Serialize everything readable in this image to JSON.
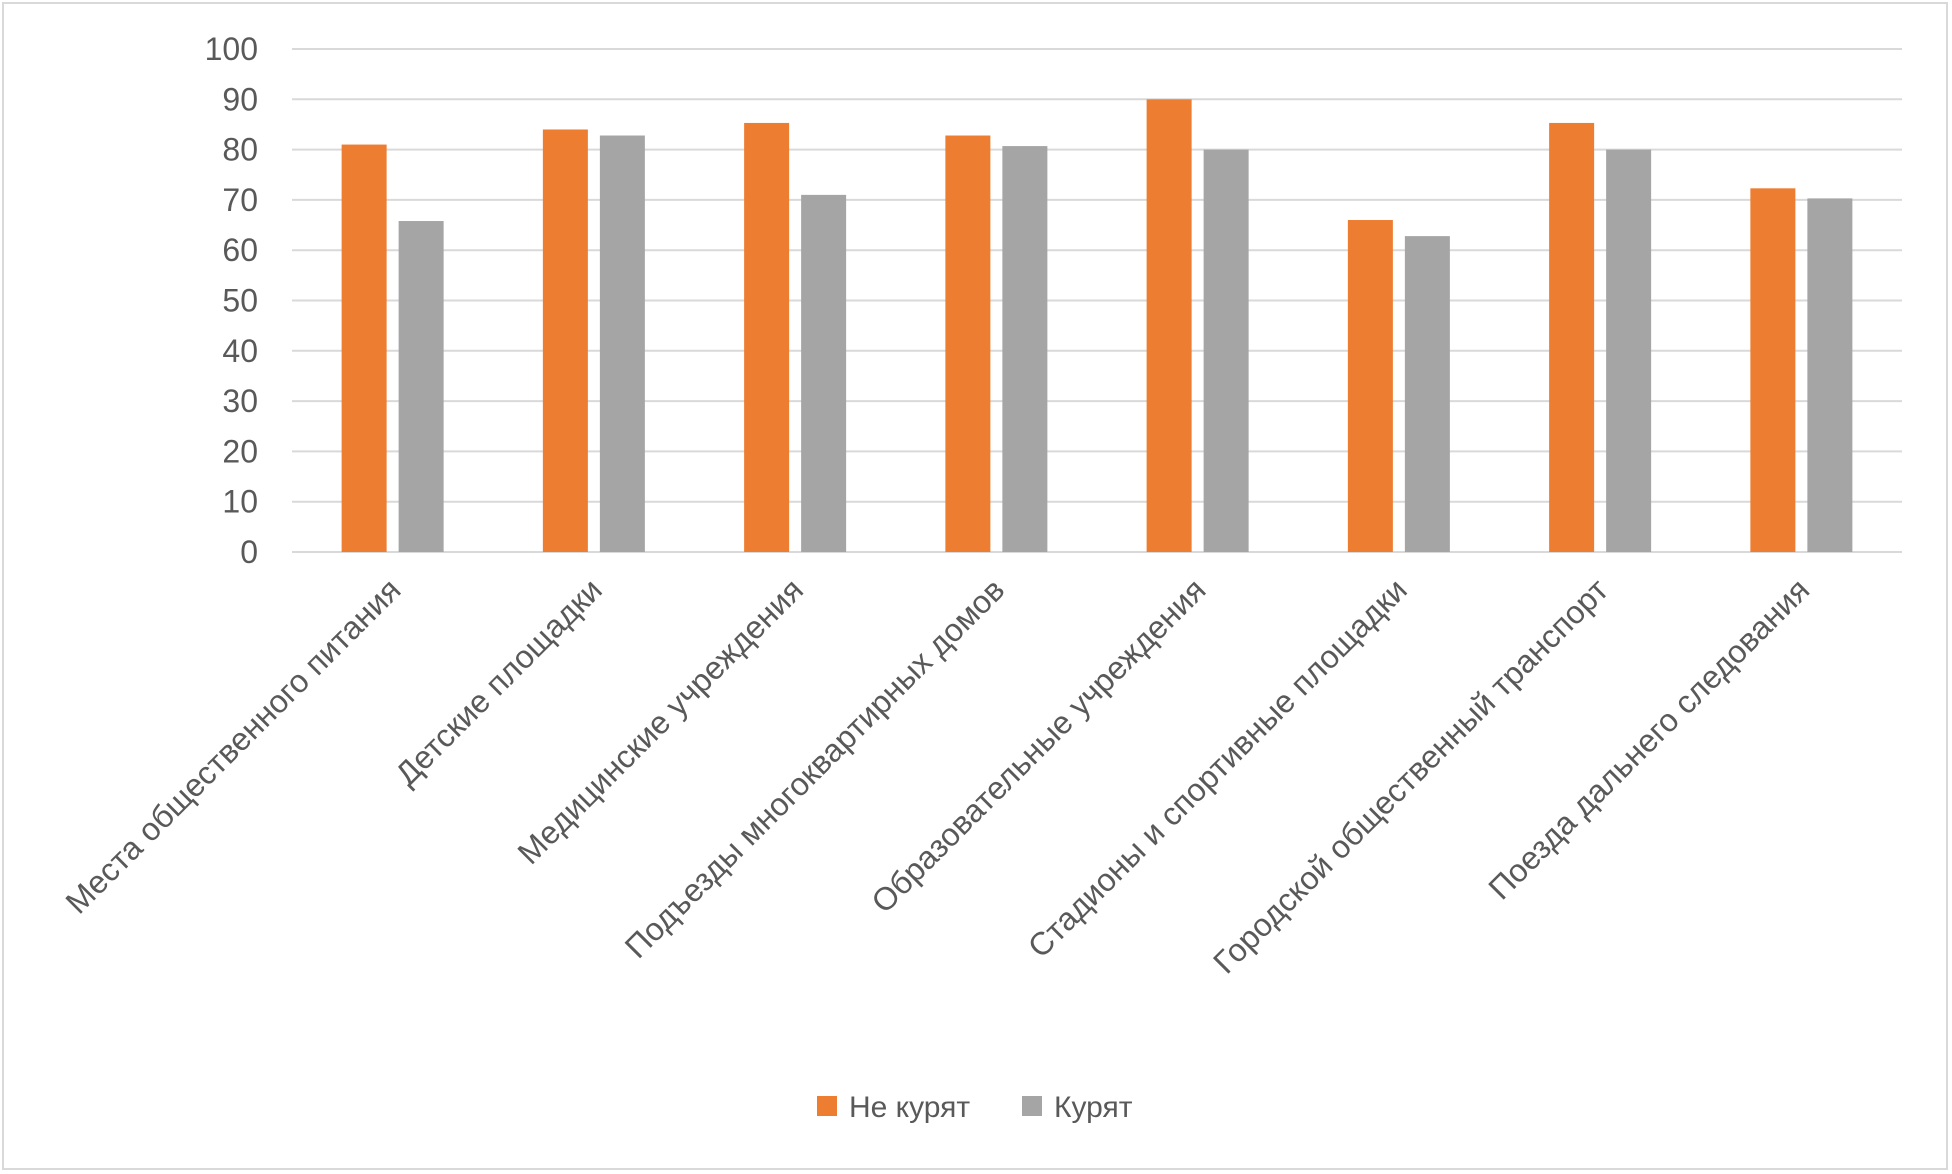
{
  "chart_data": {
    "type": "bar",
    "title": "",
    "xlabel": "",
    "ylabel": "",
    "ylim": [
      0,
      100
    ],
    "yticks": [
      0,
      10,
      20,
      30,
      40,
      50,
      60,
      70,
      80,
      90,
      100
    ],
    "grid": true,
    "legend_position": "bottom",
    "categories": [
      "Места общественного питания",
      "Детские площадки",
      "Медицинские учреждения",
      "Подъезды многоквартирных домов",
      "Образовательные учреждения",
      "Стадионы и спортивные площадки",
      "Городской общественный транспорт",
      "Поезда дальнего следования"
    ],
    "series": [
      {
        "name": "Не курят",
        "color": "#ed7d31",
        "values": [
          81,
          84,
          85.3,
          82.8,
          90,
          66,
          85.3,
          72.3
        ]
      },
      {
        "name": "Курят",
        "color": "#a5a5a5",
        "values": [
          65.8,
          82.8,
          71,
          80.7,
          80,
          62.8,
          80,
          70.3
        ]
      }
    ]
  }
}
